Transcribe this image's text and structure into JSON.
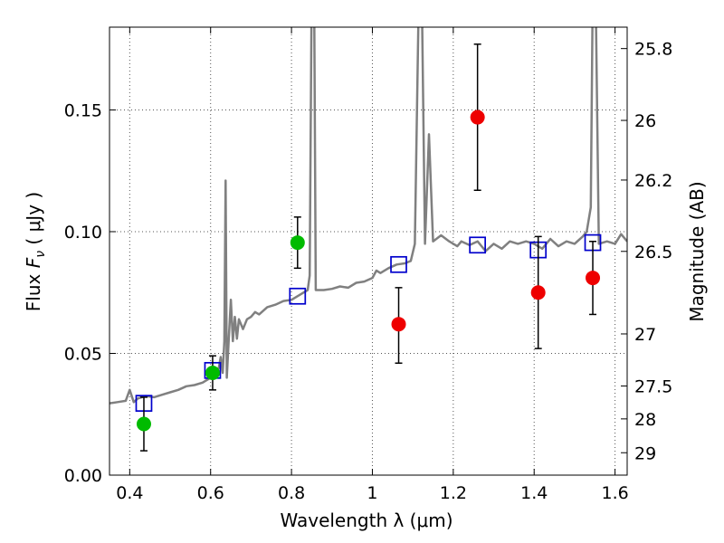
{
  "chart_data": {
    "type": "scatter",
    "x_ticks": [
      0.4,
      0.6,
      0.8,
      1,
      1.2,
      1.4,
      1.6
    ],
    "x_tick_labels": [
      "0.4",
      "0.6",
      "0.8",
      "1",
      "1.2",
      "1.4",
      "1.6"
    ],
    "y_ticks": [
      0.0,
      0.05,
      0.1,
      0.15
    ],
    "y_tick_labels": [
      "0.00",
      "0.05",
      "0.10",
      "0.15"
    ],
    "xlim": [
      0.35,
      1.63
    ],
    "ylim": [
      0.0,
      0.184
    ],
    "grid": true,
    "xlabel": "Wavelength  λ (μm)",
    "ylabel": "Flux  F_ν  ( μJy )",
    "ylabel_parts": {
      "pre": "Flux  ",
      "var": "F",
      "sub": "ν",
      "post": "  ( μJy )"
    },
    "right_axis": {
      "label": "Magnitude (AB)",
      "ticks": [
        {
          "label": "25.8",
          "flux": 0.1752
        },
        {
          "label": "26",
          "flux": 0.1457
        },
        {
          "label": "26.2",
          "flux": 0.1212
        },
        {
          "label": "26.5",
          "flux": 0.0919
        },
        {
          "label": "27",
          "flux": 0.058
        },
        {
          "label": "27.5",
          "flux": 0.0366
        },
        {
          "label": "28",
          "flux": 0.0231
        },
        {
          "label": "29",
          "flux": 0.0092
        }
      ]
    },
    "colors": {
      "spectrum": "#808080",
      "model": "#0000cc",
      "green": "#00bb00",
      "red": "#ee0000",
      "errorbar": "#000000",
      "grid": "#555555"
    },
    "series": [
      {
        "type": "line",
        "points": [
          [
            0.35,
            0.0295
          ],
          [
            0.37,
            0.03
          ],
          [
            0.39,
            0.0305
          ],
          [
            0.4,
            0.035
          ],
          [
            0.41,
            0.03
          ],
          [
            0.42,
            0.0315
          ],
          [
            0.44,
            0.0325
          ],
          [
            0.46,
            0.032
          ],
          [
            0.48,
            0.033
          ],
          [
            0.5,
            0.034
          ],
          [
            0.52,
            0.035
          ],
          [
            0.54,
            0.0365
          ],
          [
            0.56,
            0.037
          ],
          [
            0.58,
            0.038
          ],
          [
            0.6,
            0.04
          ],
          [
            0.62,
            0.044
          ],
          [
            0.625,
            0.0485
          ],
          [
            0.63,
            0.042
          ],
          [
            0.634,
            0.055
          ],
          [
            0.637,
            0.121
          ],
          [
            0.64,
            0.04
          ],
          [
            0.645,
            0.056
          ],
          [
            0.65,
            0.072
          ],
          [
            0.655,
            0.055
          ],
          [
            0.66,
            0.065
          ],
          [
            0.665,
            0.056
          ],
          [
            0.67,
            0.064
          ],
          [
            0.68,
            0.06
          ],
          [
            0.69,
            0.064
          ],
          [
            0.7,
            0.065
          ],
          [
            0.71,
            0.067
          ],
          [
            0.72,
            0.066
          ],
          [
            0.74,
            0.069
          ],
          [
            0.76,
            0.07
          ],
          [
            0.78,
            0.0715
          ],
          [
            0.8,
            0.072
          ],
          [
            0.82,
            0.074
          ],
          [
            0.84,
            0.076
          ],
          [
            0.845,
            0.082
          ],
          [
            0.85,
            0.2
          ],
          [
            0.856,
            0.2
          ],
          [
            0.86,
            0.076
          ],
          [
            0.88,
            0.076
          ],
          [
            0.9,
            0.0765
          ],
          [
            0.92,
            0.0775
          ],
          [
            0.94,
            0.077
          ],
          [
            0.96,
            0.079
          ],
          [
            0.98,
            0.0795
          ],
          [
            1.0,
            0.081
          ],
          [
            1.01,
            0.084
          ],
          [
            1.02,
            0.083
          ],
          [
            1.04,
            0.085
          ],
          [
            1.06,
            0.0865
          ],
          [
            1.08,
            0.087
          ],
          [
            1.095,
            0.088
          ],
          [
            1.105,
            0.095
          ],
          [
            1.115,
            0.2
          ],
          [
            1.122,
            0.2
          ],
          [
            1.13,
            0.095
          ],
          [
            1.14,
            0.14
          ],
          [
            1.15,
            0.096
          ],
          [
            1.17,
            0.0985
          ],
          [
            1.19,
            0.096
          ],
          [
            1.21,
            0.094
          ],
          [
            1.22,
            0.096
          ],
          [
            1.24,
            0.0945
          ],
          [
            1.26,
            0.096
          ],
          [
            1.28,
            0.092
          ],
          [
            1.3,
            0.095
          ],
          [
            1.32,
            0.093
          ],
          [
            1.34,
            0.096
          ],
          [
            1.36,
            0.095
          ],
          [
            1.38,
            0.096
          ],
          [
            1.4,
            0.095
          ],
          [
            1.42,
            0.093
          ],
          [
            1.44,
            0.097
          ],
          [
            1.46,
            0.094
          ],
          [
            1.48,
            0.096
          ],
          [
            1.5,
            0.095
          ],
          [
            1.52,
            0.098
          ],
          [
            1.53,
            0.1
          ],
          [
            1.54,
            0.11
          ],
          [
            1.545,
            0.2
          ],
          [
            1.552,
            0.2
          ],
          [
            1.56,
            0.095
          ],
          [
            1.58,
            0.096
          ],
          [
            1.6,
            0.095
          ],
          [
            1.615,
            0.099
          ],
          [
            1.63,
            0.096
          ]
        ]
      },
      {
        "type": "scatter",
        "marker": "open-square",
        "points": [
          [
            0.435,
            0.0295
          ],
          [
            0.605,
            0.043
          ],
          [
            0.815,
            0.0735
          ],
          [
            1.065,
            0.0865
          ],
          [
            1.26,
            0.0945
          ],
          [
            1.41,
            0.0925
          ],
          [
            1.545,
            0.0955
          ]
        ]
      },
      {
        "type": "scatter",
        "marker": "filled-circle",
        "color": "green",
        "points": [
          {
            "x": 0.435,
            "y": 0.021,
            "lo": 0.01,
            "hi": 0.032
          },
          {
            "x": 0.605,
            "y": 0.042,
            "lo": 0.035,
            "hi": 0.049
          },
          {
            "x": 0.815,
            "y": 0.0955,
            "lo": 0.085,
            "hi": 0.106
          }
        ]
      },
      {
        "type": "scatter",
        "marker": "filled-circle",
        "color": "red",
        "points": [
          {
            "x": 1.065,
            "y": 0.062,
            "lo": 0.046,
            "hi": 0.077
          },
          {
            "x": 1.26,
            "y": 0.147,
            "lo": 0.117,
            "hi": 0.177
          },
          {
            "x": 1.41,
            "y": 0.075,
            "lo": 0.052,
            "hi": 0.098
          },
          {
            "x": 1.545,
            "y": 0.081,
            "lo": 0.066,
            "hi": 0.096
          }
        ]
      }
    ]
  }
}
